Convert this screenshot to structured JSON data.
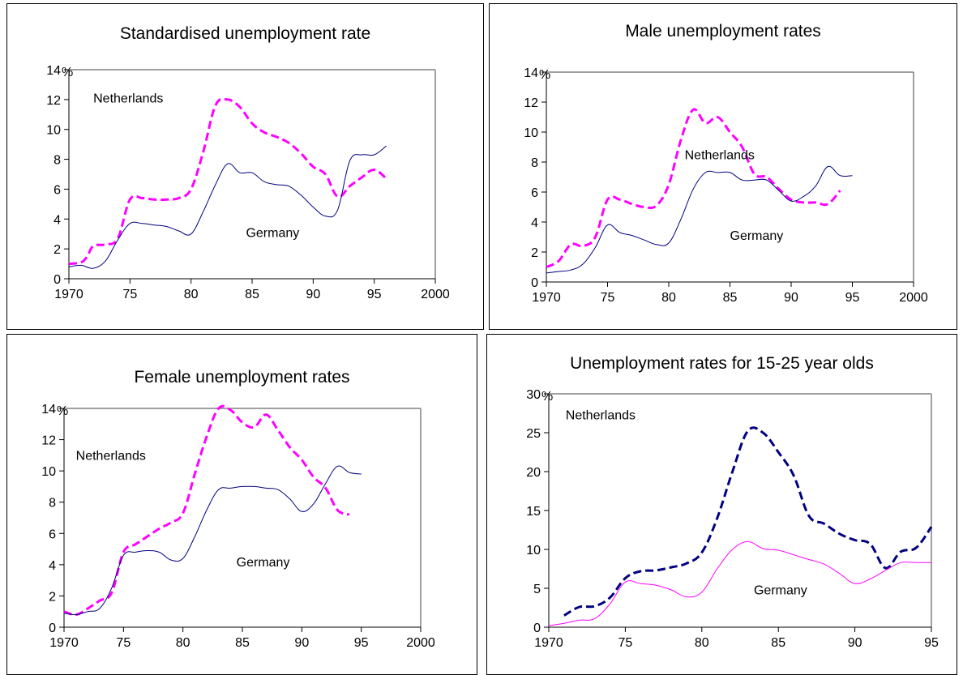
{
  "chart_data": [
    {
      "type": "line",
      "title": "Standardised unemployment rate",
      "unit_label": "%",
      "xlim": [
        1970,
        2000
      ],
      "ylim": [
        0,
        14
      ],
      "x_ticks": [
        1970,
        1975,
        1980,
        1985,
        1990,
        1995,
        2000
      ],
      "x_tick_labels": [
        "1970",
        "75",
        "80",
        "85",
        "90",
        "95",
        "2000"
      ],
      "y_ticks": [
        0,
        2,
        4,
        6,
        8,
        10,
        12,
        14
      ],
      "y_tick_labels": [
        "0",
        "2",
        "4",
        "6",
        "8",
        "10",
        "12",
        "14"
      ],
      "grid": false,
      "series": [
        {
          "name": "Netherlands",
          "color": "#ff00ff",
          "style": "dashed",
          "x": [
            1970,
            1971,
            1971.5,
            1972,
            1973,
            1974,
            1975,
            1976,
            1977,
            1978,
            1979,
            1980,
            1981,
            1982,
            1983,
            1984,
            1985,
            1986,
            1987,
            1988,
            1989,
            1990,
            1991,
            1992,
            1993,
            1994,
            1995,
            1996
          ],
          "y": [
            1.0,
            1.1,
            1.5,
            2.2,
            2.3,
            2.7,
            5.3,
            5.4,
            5.3,
            5.3,
            5.4,
            6.0,
            8.5,
            11.6,
            12.0,
            11.5,
            10.4,
            9.8,
            9.5,
            9.1,
            8.4,
            7.5,
            7.0,
            5.5,
            6.2,
            6.8,
            7.3,
            6.7
          ]
        },
        {
          "name": "Germany",
          "color": "#000080",
          "style": "solid",
          "x": [
            1970,
            1971,
            1972,
            1973,
            1974,
            1975,
            1976,
            1977,
            1978,
            1979,
            1980,
            1981,
            1982,
            1983,
            1984,
            1985,
            1986,
            1987,
            1988,
            1989,
            1990,
            1991,
            1992,
            1993,
            1994,
            1995,
            1996
          ],
          "y": [
            0.8,
            0.9,
            0.7,
            1.2,
            2.6,
            3.7,
            3.7,
            3.6,
            3.5,
            3.2,
            3.0,
            4.5,
            6.3,
            7.7,
            7.1,
            7.1,
            6.5,
            6.3,
            6.2,
            5.6,
            4.8,
            4.2,
            4.6,
            7.9,
            8.3,
            8.3,
            8.9
          ]
        }
      ],
      "annotations": [
        {
          "text": "Netherlands",
          "x": 1972,
          "y": 11.8
        },
        {
          "text": "Germany",
          "x": 1984.5,
          "y": 2.8
        }
      ]
    },
    {
      "type": "line",
      "title": "Male unemployment rates",
      "unit_label": "%",
      "xlim": [
        1970,
        2000
      ],
      "ylim": [
        0,
        14
      ],
      "x_ticks": [
        1970,
        1975,
        1980,
        1985,
        1990,
        1995,
        2000
      ],
      "x_tick_labels": [
        "1970",
        "75",
        "80",
        "85",
        "90",
        "95",
        "2000"
      ],
      "y_ticks": [
        0,
        2,
        4,
        6,
        8,
        10,
        12,
        14
      ],
      "y_tick_labels": [
        "0",
        "2",
        "4",
        "6",
        "8",
        "10",
        "12",
        "14"
      ],
      "grid": false,
      "series": [
        {
          "name": "Netherlands",
          "color": "#ff00ff",
          "style": "dashed",
          "x": [
            1970,
            1971,
            1972,
            1973,
            1974,
            1975,
            1976,
            1977,
            1978,
            1979,
            1980,
            1981,
            1982,
            1983,
            1984,
            1985,
            1986,
            1987,
            1988,
            1989,
            1990,
            1991,
            1992,
            1993,
            1994
          ],
          "y": [
            1.0,
            1.4,
            2.5,
            2.4,
            3.0,
            5.5,
            5.5,
            5.2,
            5.0,
            5.1,
            6.5,
            9.5,
            11.5,
            10.6,
            11.0,
            10.0,
            9.0,
            7.2,
            7.0,
            6.2,
            5.5,
            5.3,
            5.3,
            5.2,
            6.1
          ]
        },
        {
          "name": "Germany",
          "color": "#000080",
          "style": "solid",
          "x": [
            1970,
            1971,
            1972,
            1973,
            1974,
            1975,
            1976,
            1977,
            1978,
            1979,
            1980,
            1981,
            1982,
            1983,
            1984,
            1985,
            1986,
            1987,
            1988,
            1989,
            1990,
            1991,
            1992,
            1993,
            1994,
            1995
          ],
          "y": [
            0.6,
            0.7,
            0.8,
            1.2,
            2.3,
            3.8,
            3.3,
            3.1,
            2.8,
            2.5,
            2.6,
            4.2,
            6.2,
            7.3,
            7.3,
            7.3,
            6.8,
            6.8,
            6.8,
            6.1,
            5.4,
            5.7,
            6.4,
            7.7,
            7.1,
            7.1
          ]
        }
      ],
      "annotations": [
        {
          "text": "Netherlands",
          "x": 1981.3,
          "y": 8.2
        },
        {
          "text": "Germany",
          "x": 1985,
          "y": 2.8
        }
      ]
    },
    {
      "type": "line",
      "title": "Female unemployment rates",
      "unit_label": "%",
      "xlim": [
        1970,
        2000
      ],
      "ylim": [
        0,
        14
      ],
      "x_ticks": [
        1970,
        1975,
        1980,
        1985,
        1990,
        1995,
        2000
      ],
      "x_tick_labels": [
        "1970",
        "75",
        "80",
        "85",
        "90",
        "95",
        "2000"
      ],
      "y_ticks": [
        0,
        2,
        4,
        6,
        8,
        10,
        12,
        14
      ],
      "y_tick_labels": [
        "0",
        "2",
        "4",
        "6",
        "8",
        "10",
        "12",
        "14"
      ],
      "grid": false,
      "series": [
        {
          "name": "Netherlands",
          "color": "#ff00ff",
          "style": "dashed",
          "x": [
            1970,
            1971,
            1972,
            1973,
            1974,
            1975,
            1976,
            1977,
            1978,
            1979,
            1980,
            1981,
            1982,
            1983,
            1984,
            1985,
            1986,
            1987,
            1988,
            1989,
            1990,
            1991,
            1992,
            1993,
            1994
          ],
          "y": [
            1.0,
            0.8,
            1.2,
            1.7,
            2.2,
            4.8,
            5.3,
            5.8,
            6.3,
            6.7,
            7.3,
            9.8,
            12.2,
            14.0,
            13.9,
            13.1,
            12.8,
            13.6,
            12.6,
            11.5,
            10.7,
            9.6,
            8.9,
            7.5,
            7.2
          ]
        },
        {
          "name": "Germany",
          "color": "#000080",
          "style": "solid",
          "x": [
            1970,
            1971,
            1972,
            1973,
            1974,
            1975,
            1976,
            1977,
            1978,
            1979,
            1980,
            1981,
            1982,
            1983,
            1984,
            1985,
            1986,
            1987,
            1988,
            1989,
            1990,
            1991,
            1992,
            1993,
            1994,
            1995
          ],
          "y": [
            0.9,
            0.8,
            1.0,
            1.2,
            2.5,
            4.6,
            4.8,
            4.9,
            4.8,
            4.3,
            4.4,
            5.8,
            7.5,
            8.8,
            8.9,
            9.0,
            9.0,
            8.9,
            8.8,
            8.2,
            7.4,
            7.9,
            9.2,
            10.3,
            9.9,
            9.8
          ]
        }
      ],
      "annotations": [
        {
          "text": "Netherlands",
          "x": 1971,
          "y": 10.7
        },
        {
          "text": "Germany",
          "x": 1984.5,
          "y": 3.9
        }
      ]
    },
    {
      "type": "line",
      "title": "Unemployment rates for 15-25 year olds",
      "unit_label": "%",
      "xlim": [
        1970,
        1995
      ],
      "ylim": [
        0,
        30
      ],
      "x_ticks": [
        1970,
        1975,
        1980,
        1985,
        1990,
        1995
      ],
      "x_tick_labels": [
        "1970",
        "75",
        "80",
        "85",
        "90",
        "95"
      ],
      "y_ticks": [
        0,
        5,
        10,
        15,
        20,
        25,
        30
      ],
      "y_tick_labels": [
        "0",
        "5",
        "10",
        "15",
        "20",
        "25",
        "30"
      ],
      "grid": false,
      "series": [
        {
          "name": "Netherlands",
          "color": "#000080",
          "style": "dashed",
          "x": [
            1971,
            1972,
            1973,
            1974,
            1975,
            1976,
            1977,
            1978,
            1979,
            1980,
            1981,
            1982,
            1983,
            1984,
            1985,
            1986,
            1987,
            1988,
            1989,
            1990,
            1991,
            1992,
            1993,
            1994,
            1995
          ],
          "y": [
            1.5,
            2.6,
            2.7,
            3.8,
            6.3,
            7.2,
            7.3,
            7.7,
            8.2,
            9.6,
            14.0,
            20.0,
            25.2,
            25.0,
            22.5,
            19.5,
            14.3,
            13.3,
            12.0,
            11.2,
            10.7,
            7.6,
            9.7,
            10.2,
            12.9
          ]
        },
        {
          "name": "Germany",
          "color": "#ff00ff",
          "style": "solid",
          "x": [
            1970,
            1971,
            1972,
            1973,
            1974,
            1975,
            1976,
            1977,
            1978,
            1979,
            1980,
            1981,
            1982,
            1983,
            1984,
            1985,
            1986,
            1987,
            1988,
            1989,
            1990,
            1991,
            1992,
            1993,
            1994,
            1995
          ],
          "y": [
            0.2,
            0.5,
            0.9,
            1.1,
            3.0,
            5.8,
            5.6,
            5.4,
            4.8,
            3.9,
            4.5,
            7.5,
            10.0,
            11.0,
            10.1,
            9.9,
            9.3,
            8.7,
            8.1,
            6.9,
            5.6,
            6.2,
            7.3,
            8.3,
            8.3,
            8.3
          ]
        }
      ],
      "annotations": [
        {
          "text": "Netherlands",
          "x": 1971.1,
          "y": 26.7
        },
        {
          "text": "Germany",
          "x": 1983.4,
          "y": 4.2
        }
      ]
    }
  ]
}
